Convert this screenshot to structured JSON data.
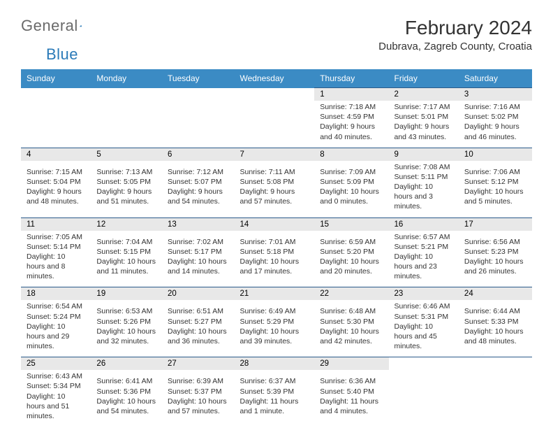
{
  "logo": {
    "text1": "General",
    "text2": "Blue"
  },
  "title": "February 2024",
  "location": "Dubrava, Zagreb County, Croatia",
  "colors": {
    "header_bg": "#3b8bc4",
    "header_text": "#ffffff",
    "border": "#2a5a8a",
    "daynum_bg": "#e8e8e8",
    "text": "#333333",
    "logo_gray": "#6a6a6a",
    "logo_blue": "#2a7ab8"
  },
  "weekdays": [
    "Sunday",
    "Monday",
    "Tuesday",
    "Wednesday",
    "Thursday",
    "Friday",
    "Saturday"
  ],
  "weeks": [
    [
      null,
      null,
      null,
      null,
      {
        "n": "1",
        "sunrise": "7:18 AM",
        "sunset": "4:59 PM",
        "day_h": "9",
        "day_m": "40"
      },
      {
        "n": "2",
        "sunrise": "7:17 AM",
        "sunset": "5:01 PM",
        "day_h": "9",
        "day_m": "43"
      },
      {
        "n": "3",
        "sunrise": "7:16 AM",
        "sunset": "5:02 PM",
        "day_h": "9",
        "day_m": "46"
      }
    ],
    [
      {
        "n": "4",
        "sunrise": "7:15 AM",
        "sunset": "5:04 PM",
        "day_h": "9",
        "day_m": "48"
      },
      {
        "n": "5",
        "sunrise": "7:13 AM",
        "sunset": "5:05 PM",
        "day_h": "9",
        "day_m": "51"
      },
      {
        "n": "6",
        "sunrise": "7:12 AM",
        "sunset": "5:07 PM",
        "day_h": "9",
        "day_m": "54"
      },
      {
        "n": "7",
        "sunrise": "7:11 AM",
        "sunset": "5:08 PM",
        "day_h": "9",
        "day_m": "57"
      },
      {
        "n": "8",
        "sunrise": "7:09 AM",
        "sunset": "5:09 PM",
        "day_h": "10",
        "day_m": "0"
      },
      {
        "n": "9",
        "sunrise": "7:08 AM",
        "sunset": "5:11 PM",
        "day_h": "10",
        "day_m": "3"
      },
      {
        "n": "10",
        "sunrise": "7:06 AM",
        "sunset": "5:12 PM",
        "day_h": "10",
        "day_m": "5"
      }
    ],
    [
      {
        "n": "11",
        "sunrise": "7:05 AM",
        "sunset": "5:14 PM",
        "day_h": "10",
        "day_m": "8"
      },
      {
        "n": "12",
        "sunrise": "7:04 AM",
        "sunset": "5:15 PM",
        "day_h": "10",
        "day_m": "11"
      },
      {
        "n": "13",
        "sunrise": "7:02 AM",
        "sunset": "5:17 PM",
        "day_h": "10",
        "day_m": "14"
      },
      {
        "n": "14",
        "sunrise": "7:01 AM",
        "sunset": "5:18 PM",
        "day_h": "10",
        "day_m": "17"
      },
      {
        "n": "15",
        "sunrise": "6:59 AM",
        "sunset": "5:20 PM",
        "day_h": "10",
        "day_m": "20"
      },
      {
        "n": "16",
        "sunrise": "6:57 AM",
        "sunset": "5:21 PM",
        "day_h": "10",
        "day_m": "23"
      },
      {
        "n": "17",
        "sunrise": "6:56 AM",
        "sunset": "5:23 PM",
        "day_h": "10",
        "day_m": "26"
      }
    ],
    [
      {
        "n": "18",
        "sunrise": "6:54 AM",
        "sunset": "5:24 PM",
        "day_h": "10",
        "day_m": "29"
      },
      {
        "n": "19",
        "sunrise": "6:53 AM",
        "sunset": "5:26 PM",
        "day_h": "10",
        "day_m": "32"
      },
      {
        "n": "20",
        "sunrise": "6:51 AM",
        "sunset": "5:27 PM",
        "day_h": "10",
        "day_m": "36"
      },
      {
        "n": "21",
        "sunrise": "6:49 AM",
        "sunset": "5:29 PM",
        "day_h": "10",
        "day_m": "39"
      },
      {
        "n": "22",
        "sunrise": "6:48 AM",
        "sunset": "5:30 PM",
        "day_h": "10",
        "day_m": "42"
      },
      {
        "n": "23",
        "sunrise": "6:46 AM",
        "sunset": "5:31 PM",
        "day_h": "10",
        "day_m": "45"
      },
      {
        "n": "24",
        "sunrise": "6:44 AM",
        "sunset": "5:33 PM",
        "day_h": "10",
        "day_m": "48"
      }
    ],
    [
      {
        "n": "25",
        "sunrise": "6:43 AM",
        "sunset": "5:34 PM",
        "day_h": "10",
        "day_m": "51"
      },
      {
        "n": "26",
        "sunrise": "6:41 AM",
        "sunset": "5:36 PM",
        "day_h": "10",
        "day_m": "54"
      },
      {
        "n": "27",
        "sunrise": "6:39 AM",
        "sunset": "5:37 PM",
        "day_h": "10",
        "day_m": "57"
      },
      {
        "n": "28",
        "sunrise": "6:37 AM",
        "sunset": "5:39 PM",
        "day_h": "11",
        "day_m": "1"
      },
      {
        "n": "29",
        "sunrise": "6:36 AM",
        "sunset": "5:40 PM",
        "day_h": "11",
        "day_m": "4"
      },
      null,
      null
    ]
  ]
}
